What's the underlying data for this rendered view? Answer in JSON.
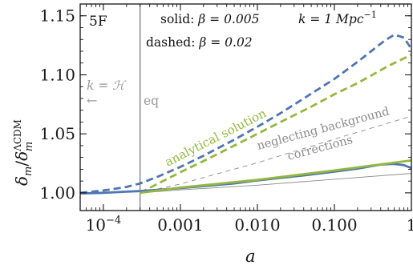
{
  "chart_data": {
    "type": "line",
    "panel_label": "5F",
    "xlabel": "a",
    "ylabel_main": "δ",
    "ylabel_sub": "m",
    "ylabel_sep": "/",
    "ylabel_den": "δ",
    "ylabel_den_sup": "ΛCDM",
    "ylabel_den_sub": "m",
    "x_scale": "log",
    "xlim": [
      5e-05,
      1
    ],
    "ylim": [
      0.985,
      1.16
    ],
    "x_ticks": [
      {
        "value": 0.0001,
        "base": "10",
        "exp": "−4"
      },
      {
        "value": 0.001,
        "label": "0.001"
      },
      {
        "value": 0.01,
        "label": "0.010"
      },
      {
        "value": 0.1,
        "label": "0.100"
      },
      {
        "value": 1,
        "label": "1"
      }
    ],
    "y_ticks": [
      {
        "value": 1.0,
        "label": "1.00"
      },
      {
        "value": 1.05,
        "label": "1.05"
      },
      {
        "value": 1.1,
        "label": "1.10"
      },
      {
        "value": 1.15,
        "label": "1.15"
      }
    ],
    "legend": {
      "solid_text": "solid: ",
      "solid_beta": "β = 0.005",
      "dashed_text": "dashed: ",
      "dashed_beta": "β = 0.02",
      "k_text": "k = 1 Mpc",
      "k_exp": "−1"
    },
    "annotations": {
      "horizon_label": "k = ℋ",
      "horizon_arrow": "←",
      "eq_label": "eq",
      "analytical_label": "analytical solution",
      "neglect_line1": "neglecting background",
      "neglect_line2": "corrections"
    },
    "vertical_line_x": 0.0003,
    "colors": {
      "blue": "#4f75b5",
      "green": "#94b83c",
      "gray": "#8c8c8c",
      "eq_line": "#555555"
    },
    "series": [
      {
        "style": "dashed",
        "color": "blue",
        "x": [
          5e-05,
          0.0001,
          0.0002,
          0.0003,
          0.0005,
          0.001,
          0.002,
          0.005,
          0.01,
          0.02,
          0.05,
          0.1,
          0.2,
          0.3,
          0.45,
          0.6,
          0.8,
          1
        ],
        "y": [
          1.0,
          1.002,
          1.005,
          1.008,
          1.0135,
          1.022,
          1.0315,
          1.045,
          1.056,
          1.0675,
          1.084,
          1.0965,
          1.111,
          1.12,
          1.129,
          1.134,
          1.1315,
          1.122
        ]
      },
      {
        "style": "dashed",
        "color": "green",
        "x": [
          0.0003,
          0.0005,
          0.001,
          0.002,
          0.005,
          0.01,
          0.02,
          0.05,
          0.1,
          0.2,
          0.5,
          1
        ],
        "y": [
          1.0,
          1.0075,
          1.0175,
          1.027,
          1.04,
          1.05,
          1.06,
          1.073,
          1.0835,
          1.093,
          1.1075,
          1.117
        ]
      },
      {
        "style": "dashed",
        "color": "gray",
        "x": [
          0.0003,
          0.001,
          0.01,
          0.1,
          1
        ],
        "y": [
          1.0,
          1.0075,
          1.0255,
          1.0455,
          1.065
        ]
      },
      {
        "style": "solid",
        "color": "blue",
        "x": [
          5e-05,
          0.0001,
          0.0002,
          0.0003,
          0.0005,
          0.001,
          0.005,
          0.01,
          0.05,
          0.1,
          0.2,
          0.4,
          0.6,
          0.8,
          1
        ],
        "y": [
          0.9995,
          1.0,
          1.001,
          1.0015,
          1.0025,
          1.004,
          1.008,
          1.0105,
          1.0155,
          1.018,
          1.0205,
          1.024,
          1.0245,
          1.0235,
          1.021
        ]
      },
      {
        "style": "solid",
        "color": "green",
        "x": [
          0.0003,
          0.001,
          0.01,
          0.1,
          1
        ],
        "y": [
          1.0,
          1.0045,
          1.011,
          1.019,
          1.0275
        ]
      },
      {
        "style": "solid",
        "color": "gray",
        "x": [
          0.0003,
          0.001,
          0.01,
          0.1,
          1
        ],
        "y": [
          1.0,
          1.0025,
          1.0065,
          1.0115,
          1.0165
        ]
      }
    ]
  }
}
